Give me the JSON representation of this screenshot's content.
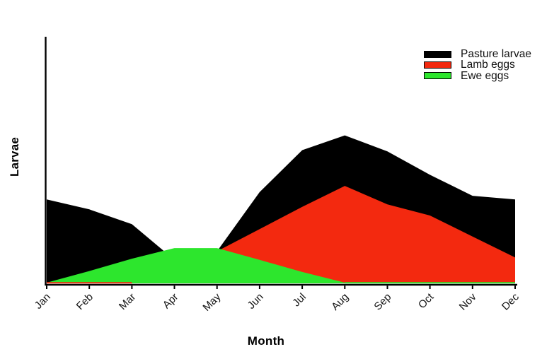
{
  "chart_data": {
    "type": "area",
    "title": "",
    "categories": [
      "Jan",
      "Feb",
      "Mar",
      "Apr",
      "May",
      "Jun",
      "Jul",
      "Aug",
      "Sep",
      "Oct",
      "Nov",
      "Dec"
    ],
    "series": [
      {
        "name": "Pasture larvae",
        "color": "#000000",
        "values": [
          34,
          30,
          24,
          9.5,
          13,
          37,
          54,
          60,
          53.5,
          44,
          35.5,
          34
        ]
      },
      {
        "name": "Lamb eggs",
        "color": "#f3290f",
        "values": [
          0.3,
          0.3,
          0.3,
          3,
          13,
          22,
          31,
          39.5,
          32,
          27.5,
          19,
          10.5
        ]
      },
      {
        "name": "Ewe eggs",
        "color": "#2de62d",
        "values": [
          0.3,
          5,
          10,
          14.3,
          14.3,
          9.5,
          4.6,
          0.3,
          0.3,
          0.3,
          0.3,
          0.3
        ]
      }
    ],
    "xlabel": "Month",
    "ylabel": "Larvae",
    "y_axis": {
      "range": [
        0,
        100
      ],
      "tick_labels": "none"
    },
    "x_axis": {
      "tick_label_rotation_deg": -45
    },
    "legend": {
      "position": "top-right",
      "entries": [
        "Pasture larvae",
        "Lamb eggs",
        "Ewe eggs"
      ]
    },
    "mode": "overlapping",
    "draw_order": [
      "Pasture larvae",
      "Lamb eggs",
      "Ewe eggs"
    ],
    "grid": "off"
  }
}
